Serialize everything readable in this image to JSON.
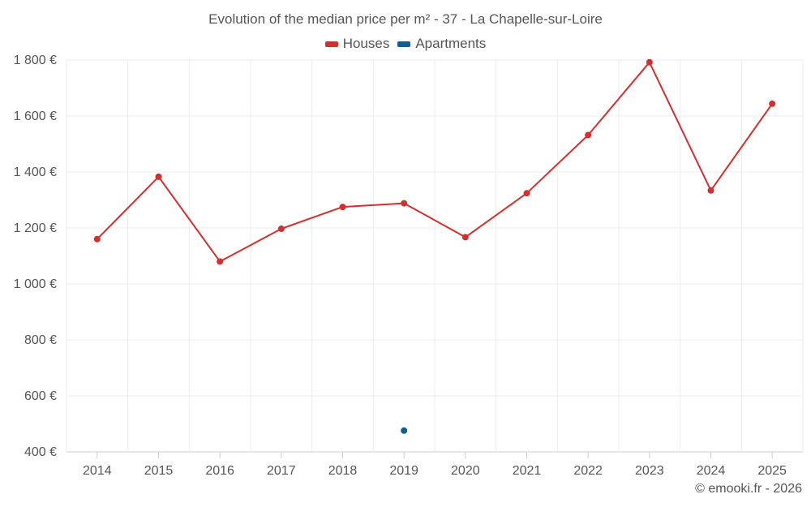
{
  "chart_data": {
    "type": "line",
    "title": "Evolution of the median price per m² - 37 - La Chapelle-sur-Loire",
    "xlabel": "",
    "ylabel": "",
    "categories": [
      "2014",
      "2015",
      "2016",
      "2017",
      "2018",
      "2019",
      "2020",
      "2021",
      "2022",
      "2023",
      "2024",
      "2025"
    ],
    "series": [
      {
        "name": "Houses",
        "color": "#d32f2f",
        "values": [
          1160,
          1383,
          1080,
          1197,
          1275,
          1288,
          1167,
          1324,
          1532,
          1792,
          1334,
          1644
        ]
      },
      {
        "name": "Apartments",
        "color": "#0f5f93",
        "values": [
          null,
          null,
          null,
          null,
          null,
          476,
          null,
          null,
          null,
          null,
          null,
          null
        ]
      }
    ],
    "ylim": [
      400,
      1800
    ],
    "yticks": [
      400,
      600,
      800,
      1000,
      1200,
      1400,
      1600,
      1800
    ],
    "ytick_labels": [
      "400 €",
      "600 €",
      "800 €",
      "1 000 €",
      "1 200 €",
      "1 400 €",
      "1 600 €",
      "1 800 €"
    ],
    "grid": true,
    "legend_position": "top-center"
  },
  "credit": "© emooki.fr - 2026"
}
